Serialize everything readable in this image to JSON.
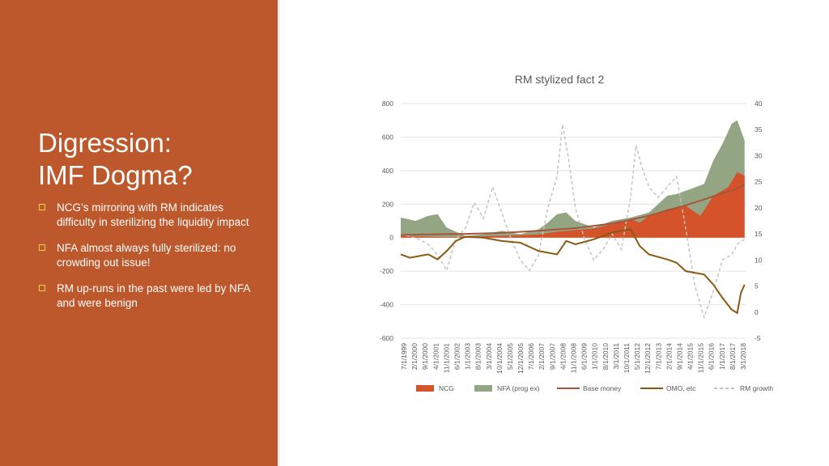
{
  "slide": {
    "title_line1": "Digression:",
    "title_line2": "IMF Dogma?",
    "bullets": [
      "NCG’s mirroring with RM indicates difficulty in sterilizing the liquidity impact",
      "NFA almost always fully sterilized: no crowding out issue!",
      "RM up-runs in the past were led by NFA and were benign"
    ],
    "colors": {
      "panel": "#bc582b",
      "bullet_icon": "#f5d34a"
    }
  },
  "chart_data": {
    "type": "area",
    "title": "RM stylized fact 2",
    "x_tick_labels": [
      "7/1/1999",
      "2/1/2000",
      "9/1/2000",
      "4/1/2001",
      "11/1/2001",
      "6/1/2002",
      "1/1/2003",
      "8/1/2003",
      "3/1/2004",
      "10/1/2004",
      "5/1/2005",
      "12/1/2005",
      "7/1/2006",
      "2/1/2007",
      "9/1/2007",
      "4/1/2008",
      "11/1/2008",
      "6/1/2009",
      "1/1/2010",
      "8/1/2010",
      "3/1/2011",
      "10/1/2011",
      "5/1/2012",
      "12/1/2012",
      "7/1/2013",
      "2/1/2014",
      "9/1/2014",
      "4/1/2015",
      "11/1/2015",
      "6/1/2016",
      "1/1/2017",
      "8/1/2017",
      "3/1/2018"
    ],
    "x_range": [
      1999.5,
      2018.3
    ],
    "y_left": {
      "ticks": [
        "800",
        "600",
        "400",
        "200",
        "0",
        "-200",
        "-400",
        "-600"
      ],
      "range": [
        -600,
        800
      ]
    },
    "y_right": {
      "ticks": [
        "40",
        "35",
        "30",
        "25",
        "20",
        "15",
        "10",
        "5",
        "0",
        "-5"
      ],
      "range": [
        -5,
        40
      ]
    },
    "legend_position": "bottom",
    "grid": true,
    "series": [
      {
        "name": "NCG",
        "kind": "area",
        "axis": "left",
        "color": "#d4532a",
        "points": [
          [
            1999.5,
            10
          ],
          [
            2001,
            5
          ],
          [
            2002,
            3
          ],
          [
            2003,
            5
          ],
          [
            2004,
            8
          ],
          [
            2005,
            10
          ],
          [
            2006,
            15
          ],
          [
            2007,
            20
          ],
          [
            2008,
            35
          ],
          [
            2009,
            45
          ],
          [
            2010,
            55
          ],
          [
            2011,
            80
          ],
          [
            2012,
            110
          ],
          [
            2012.5,
            90
          ],
          [
            2013,
            130
          ],
          [
            2014,
            170
          ],
          [
            2015,
            190
          ],
          [
            2015.8,
            130
          ],
          [
            2016.5,
            250
          ],
          [
            2017.3,
            300
          ],
          [
            2017.8,
            390
          ],
          [
            2018.2,
            370
          ]
        ]
      },
      {
        "name": "NFA (prog ex)",
        "kind": "area",
        "axis": "left",
        "color": "#94a584",
        "points": [
          [
            1999.5,
            120
          ],
          [
            2000.3,
            100
          ],
          [
            2001,
            130
          ],
          [
            2001.5,
            140
          ],
          [
            2002,
            60
          ],
          [
            2003,
            10
          ],
          [
            2004,
            20
          ],
          [
            2005,
            40
          ],
          [
            2006,
            20
          ],
          [
            2007,
            50
          ],
          [
            2007.5,
            90
          ],
          [
            2008,
            140
          ],
          [
            2008.5,
            150
          ],
          [
            2009,
            100
          ],
          [
            2010,
            60
          ],
          [
            2010.5,
            80
          ],
          [
            2011,
            100
          ],
          [
            2012,
            120
          ],
          [
            2013,
            150
          ],
          [
            2014,
            250
          ],
          [
            2014.5,
            260
          ],
          [
            2015,
            280
          ],
          [
            2015.5,
            300
          ],
          [
            2016,
            320
          ],
          [
            2016.5,
            460
          ],
          [
            2017,
            560
          ],
          [
            2017.5,
            680
          ],
          [
            2017.8,
            700
          ],
          [
            2018.2,
            580
          ]
        ]
      },
      {
        "name": "Base money",
        "kind": "line",
        "axis": "right",
        "color": "#a6553a",
        "points": [
          [
            1999.5,
            14.8
          ],
          [
            2001,
            14.9
          ],
          [
            2003,
            15
          ],
          [
            2005,
            15.2
          ],
          [
            2007,
            15.6
          ],
          [
            2009,
            16.1
          ],
          [
            2011,
            17
          ],
          [
            2012,
            17.7
          ],
          [
            2013,
            18.5
          ],
          [
            2014,
            19.5
          ],
          [
            2015,
            20.5
          ],
          [
            2016,
            21.6
          ],
          [
            2017,
            22.8
          ],
          [
            2017.6,
            23.4
          ],
          [
            2018.2,
            24.5
          ]
        ]
      },
      {
        "name": "OMO, etc",
        "kind": "line",
        "axis": "left",
        "color": "#8a5a13",
        "points": [
          [
            1999.5,
            -100
          ],
          [
            2000,
            -120
          ],
          [
            2001,
            -100
          ],
          [
            2001.5,
            -130
          ],
          [
            2002,
            -80
          ],
          [
            2002.5,
            -20
          ],
          [
            2003,
            5
          ],
          [
            2004,
            0
          ],
          [
            2005,
            -20
          ],
          [
            2006,
            -30
          ],
          [
            2007,
            -80
          ],
          [
            2008,
            -100
          ],
          [
            2008.5,
            -20
          ],
          [
            2009,
            -40
          ],
          [
            2010,
            -10
          ],
          [
            2011,
            30
          ],
          [
            2012,
            50
          ],
          [
            2012.5,
            -50
          ],
          [
            2013,
            -100
          ],
          [
            2014,
            -130
          ],
          [
            2014.5,
            -150
          ],
          [
            2015,
            -200
          ],
          [
            2016,
            -220
          ],
          [
            2016.5,
            -280
          ],
          [
            2017,
            -360
          ],
          [
            2017.5,
            -430
          ],
          [
            2017.8,
            -450
          ],
          [
            2018,
            -330
          ],
          [
            2018.2,
            -280
          ]
        ]
      },
      {
        "name": "RM growth",
        "kind": "line",
        "dashed": true,
        "axis": "right",
        "color": "#c3c3c3",
        "points": [
          [
            1999.5,
            15
          ],
          [
            2000.5,
            14
          ],
          [
            2001,
            13
          ],
          [
            2001.5,
            11
          ],
          [
            2002,
            8
          ],
          [
            2002.5,
            14
          ],
          [
            2003,
            16
          ],
          [
            2003.5,
            21
          ],
          [
            2004,
            18
          ],
          [
            2004.5,
            24
          ],
          [
            2005,
            19
          ],
          [
            2005.5,
            14
          ],
          [
            2006,
            10
          ],
          [
            2006.5,
            8
          ],
          [
            2007,
            11
          ],
          [
            2007.5,
            20
          ],
          [
            2008,
            26
          ],
          [
            2008.3,
            36
          ],
          [
            2008.6,
            30
          ],
          [
            2009,
            20
          ],
          [
            2009.5,
            14
          ],
          [
            2010,
            10
          ],
          [
            2010.5,
            12
          ],
          [
            2011,
            15
          ],
          [
            2011.5,
            12
          ],
          [
            2012,
            22
          ],
          [
            2012.3,
            32
          ],
          [
            2012.6,
            28
          ],
          [
            2013,
            24
          ],
          [
            2013.5,
            22
          ],
          [
            2014,
            24
          ],
          [
            2014.5,
            26
          ],
          [
            2015,
            16
          ],
          [
            2015.5,
            5
          ],
          [
            2016,
            -1
          ],
          [
            2016.5,
            4
          ],
          [
            2017,
            10
          ],
          [
            2017.5,
            11
          ],
          [
            2017.8,
            13
          ],
          [
            2018.2,
            14
          ]
        ]
      }
    ]
  }
}
